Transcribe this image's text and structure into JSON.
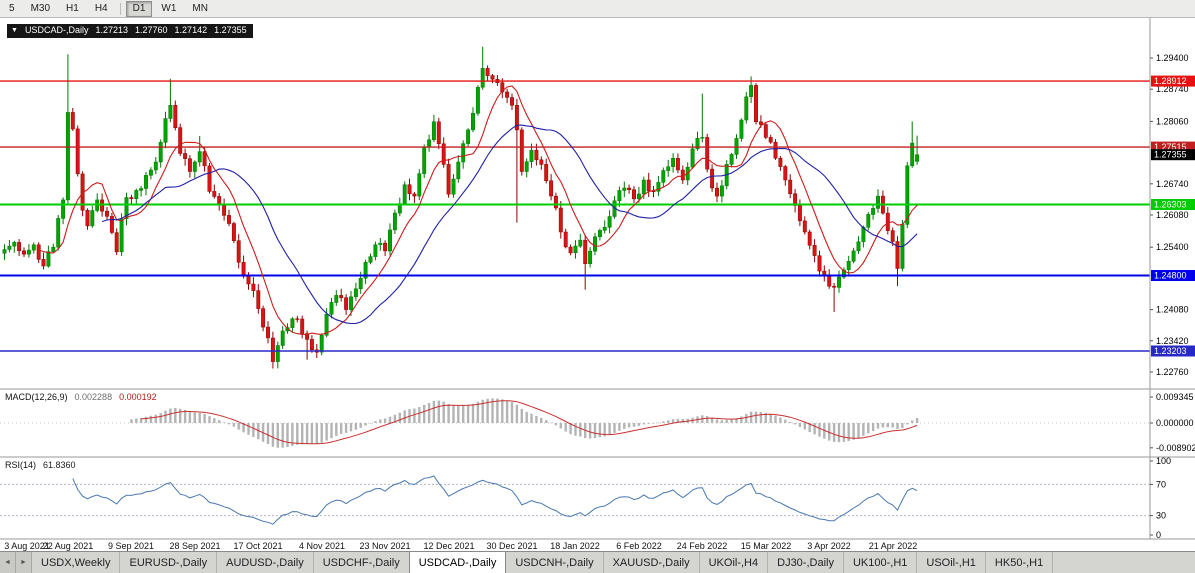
{
  "icons": {
    "symbol_menu": "▼",
    "tab_scroll_left": "◄",
    "tab_scroll_right": "►"
  },
  "toolbar": {
    "periods": [
      {
        "label": "5",
        "active": false
      },
      {
        "label": "M30",
        "active": false
      },
      {
        "label": "H1",
        "active": false
      },
      {
        "label": "H4",
        "active": false
      },
      {
        "label": "D1",
        "active": true
      },
      {
        "label": "W1",
        "active": false
      },
      {
        "label": "MN",
        "active": false
      }
    ]
  },
  "chart": {
    "symbol_title": "USDCAD-,Daily",
    "ohlc": {
      "open": "1.27213",
      "high": "1.27760",
      "low": "1.27142",
      "close": "1.27355"
    },
    "price_axis": {
      "ticks": [
        1.294,
        1.2874,
        1.2806,
        1.2674,
        1.2608,
        1.254,
        1.2408,
        1.2342,
        1.2276
      ],
      "current": {
        "value": 1.27355,
        "label": "1.27355",
        "bg": "#000000"
      }
    },
    "hlines": [
      {
        "value": 1.28912,
        "label": "1.28912",
        "color": "#e81010",
        "width": 1.4
      },
      {
        "value": 1.27515,
        "label": "1.27515",
        "color": "#c02020",
        "width": 1.4
      },
      {
        "value": 1.26303,
        "label": "1.26303",
        "color": "#00cc00",
        "width": 2
      },
      {
        "value": 1.248,
        "label": "1.24800",
        "color": "#0000ee",
        "width": 2
      },
      {
        "value": 1.23203,
        "label": "1.23203",
        "color": "#2828c8",
        "width": 1.6
      }
    ],
    "date_labels": [
      "3 Aug 2021",
      "22 Aug 2021",
      "9 Sep 2021",
      "28 Sep 2021",
      "17 Oct 2021",
      "4 Nov 2021",
      "23 Nov 2021",
      "12 Dec 2021",
      "30 Dec 2021",
      "18 Jan 2022",
      "6 Feb 2022",
      "24 Feb 2022",
      "15 Mar 2022",
      "3 Apr 2022",
      "21 Apr 2022"
    ],
    "colors": {
      "bull": "#007800",
      "bull_fill": "#00a400",
      "bear": "#8f0000",
      "bear_fill": "#d81414",
      "ma_fast": "#cc1c1c",
      "ma_slow": "#2020a8"
    }
  },
  "macd": {
    "name": "MACD(12,26,9)",
    "value_main": "0.002288",
    "value_signal": "0.000192",
    "axis_ticks": [
      "0.009345",
      "0.000000",
      "-0.008902"
    ],
    "histogram_color": "#b4b4b4",
    "signal_color": "#c83030"
  },
  "rsi": {
    "name": "RSI(14)",
    "value": "61.8360",
    "axis_ticks": [
      "100",
      "70",
      "30",
      "0"
    ],
    "levels": [
      70,
      30
    ],
    "line_color": "#4878b0"
  },
  "tabs": {
    "items": [
      {
        "label": "USDX,Weekly",
        "active": false
      },
      {
        "label": "EURUSD-,Daily",
        "active": false
      },
      {
        "label": "AUDUSD-,Daily",
        "active": false
      },
      {
        "label": "USDCHF-,Daily",
        "active": false
      },
      {
        "label": "USDCAD-,Daily",
        "active": true
      },
      {
        "label": "USDCNH-,Daily",
        "active": false
      },
      {
        "label": "XAUUSD-,Daily",
        "active": false
      },
      {
        "label": "UKOil-,H4",
        "active": false
      },
      {
        "label": "DJ30-,Daily",
        "active": false
      },
      {
        "label": "UK100-,H1",
        "active": false
      },
      {
        "label": "USOil-,H1",
        "active": false
      },
      {
        "label": "HK50-,H1",
        "active": false
      }
    ]
  },
  "chart_data": {
    "type": "candlestick",
    "symbol": "USDCAD",
    "timeframe": "Daily",
    "visible_range": {
      "first_date": "3 Aug 2021",
      "last_date": "21 Apr 2022",
      "price_min": 1.2276,
      "price_max": 1.2964
    },
    "days": 188,
    "label_every_days": 13,
    "close_anchors": [
      [
        0,
        1.2535
      ],
      [
        2,
        1.255
      ],
      [
        4,
        1.2525
      ],
      [
        6,
        1.2545
      ],
      [
        8,
        1.25
      ],
      [
        10,
        1.254
      ],
      [
        12,
        1.264
      ],
      [
        13,
        1.2825
      ],
      [
        14,
        1.279
      ],
      [
        15,
        1.2695
      ],
      [
        16,
        1.2618
      ],
      [
        17,
        1.2585
      ],
      [
        19,
        1.264
      ],
      [
        21,
        1.2605
      ],
      [
        23,
        1.253
      ],
      [
        25,
        1.2645
      ],
      [
        27,
        1.266
      ],
      [
        29,
        1.2692
      ],
      [
        31,
        1.272
      ],
      [
        33,
        1.2812
      ],
      [
        34,
        1.284
      ],
      [
        36,
        1.2738
      ],
      [
        38,
        1.27
      ],
      [
        40,
        1.2742
      ],
      [
        42,
        1.2658
      ],
      [
        44,
        1.263
      ],
      [
        46,
        1.259
      ],
      [
        48,
        1.2508
      ],
      [
        50,
        1.2462
      ],
      [
        52,
        1.241
      ],
      [
        54,
        1.2348
      ],
      [
        55,
        1.2298
      ],
      [
        56,
        1.2332
      ],
      [
        58,
        1.237
      ],
      [
        60,
        1.2388
      ],
      [
        62,
        1.2345
      ],
      [
        64,
        1.2318
      ],
      [
        66,
        1.2398
      ],
      [
        68,
        1.2438
      ],
      [
        70,
        1.2408
      ],
      [
        72,
        1.2452
      ],
      [
        74,
        1.2508
      ],
      [
        76,
        1.2545
      ],
      [
        78,
        1.2532
      ],
      [
        80,
        1.2612
      ],
      [
        82,
        1.2672
      ],
      [
        84,
        1.2648
      ],
      [
        86,
        1.2752
      ],
      [
        88,
        1.2805
      ],
      [
        90,
        1.2715
      ],
      [
        91,
        1.2652
      ],
      [
        93,
        1.272
      ],
      [
        95,
        1.2788
      ],
      [
        97,
        1.2878
      ],
      [
        98,
        1.2918
      ],
      [
        100,
        1.2895
      ],
      [
        102,
        1.2868
      ],
      [
        104,
        1.284
      ],
      [
        105,
        1.2788
      ],
      [
        106,
        1.27
      ],
      [
        108,
        1.2745
      ],
      [
        110,
        1.2715
      ],
      [
        112,
        1.2648
      ],
      [
        114,
        1.2572
      ],
      [
        116,
        1.2528
      ],
      [
        118,
        1.2555
      ],
      [
        119,
        1.2505
      ],
      [
        121,
        1.2562
      ],
      [
        123,
        1.2582
      ],
      [
        125,
        1.2638
      ],
      [
        127,
        1.2665
      ],
      [
        129,
        1.2642
      ],
      [
        131,
        1.2682
      ],
      [
        133,
        1.2658
      ],
      [
        135,
        1.2702
      ],
      [
        137,
        1.2728
      ],
      [
        139,
        1.2682
      ],
      [
        141,
        1.2748
      ],
      [
        143,
        1.2772
      ],
      [
        144,
        1.2705
      ],
      [
        146,
        1.2648
      ],
      [
        148,
        1.2715
      ],
      [
        150,
        1.277
      ],
      [
        152,
        1.2858
      ],
      [
        153,
        1.2882
      ],
      [
        154,
        1.2805
      ],
      [
        156,
        1.2772
      ],
      [
        158,
        1.2728
      ],
      [
        160,
        1.2682
      ],
      [
        162,
        1.2628
      ],
      [
        164,
        1.2572
      ],
      [
        166,
        1.2522
      ],
      [
        168,
        1.248
      ],
      [
        170,
        1.2455
      ],
      [
        172,
        1.2492
      ],
      [
        174,
        1.2532
      ],
      [
        176,
        1.2582
      ],
      [
        178,
        1.2622
      ],
      [
        179,
        1.2648
      ],
      [
        180,
        1.2612
      ],
      [
        181,
        1.2575
      ],
      [
        182,
        1.2552
      ],
      [
        183,
        1.2495
      ],
      [
        184,
        1.2588
      ],
      [
        185,
        1.2712
      ],
      [
        186,
        1.276
      ],
      [
        187,
        1.27355
      ]
    ],
    "wick_overrides": [
      {
        "d": 13,
        "h": 1.2948
      },
      {
        "d": 34,
        "h": 1.2896
      },
      {
        "d": 40,
        "h": 1.2775
      },
      {
        "d": 55,
        "l": 1.2287
      },
      {
        "d": 62,
        "l": 1.2302
      },
      {
        "d": 98,
        "h": 1.2964
      },
      {
        "d": 105,
        "l": 1.2592
      },
      {
        "d": 119,
        "l": 1.245
      },
      {
        "d": 143,
        "h": 1.2865
      },
      {
        "d": 153,
        "h": 1.2901
      },
      {
        "d": 170,
        "l": 1.2403
      },
      {
        "d": 183,
        "l": 1.2458
      },
      {
        "d": 186,
        "h": 1.2806
      }
    ],
    "last_candle": {
      "o": 1.27213,
      "h": 1.2776,
      "l": 1.27142,
      "c": 1.27355
    }
  }
}
